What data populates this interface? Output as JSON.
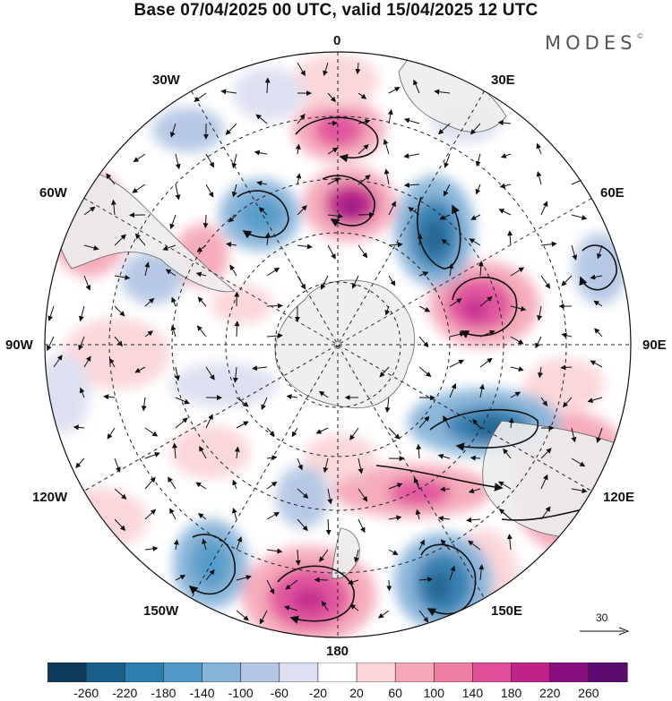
{
  "title": "Base 07/04/2025 00 UTC, valid 15/04/2025 12 UTC",
  "brand": "MODES",
  "brand_mark": "©",
  "longitude_labels": {
    "top": "0",
    "right": "90E",
    "bottom": "180",
    "left": "90W",
    "ne": "30E",
    "nne": "60E",
    "se": "120E",
    "sse": "150E",
    "nw": "30W",
    "nnw": "60W",
    "sw": "120W",
    "ssw": "150W"
  },
  "reference_vector": {
    "value": "30",
    "icon": "arrow-right-icon"
  },
  "colorbar": {
    "ticks": [
      "-260",
      "-220",
      "-180",
      "-140",
      "-100",
      "-60",
      "-20",
      "20",
      "60",
      "100",
      "140",
      "180",
      "220",
      "260"
    ],
    "colors": [
      "#0e3a5c",
      "#1a5f8c",
      "#2d7db0",
      "#4f98c7",
      "#86b3d8",
      "#b3c6e3",
      "#dcdff0",
      "#ffffff",
      "#fad5d8",
      "#f5a8b8",
      "#ee7fa4",
      "#e0509a",
      "#c22288",
      "#8a0f7e",
      "#5a0c6e"
    ]
  },
  "map": {
    "projection": "south polar stereographic",
    "fill_variable": "anomaly shading",
    "land_color": "#eeeeee",
    "grid": "dashed"
  }
}
